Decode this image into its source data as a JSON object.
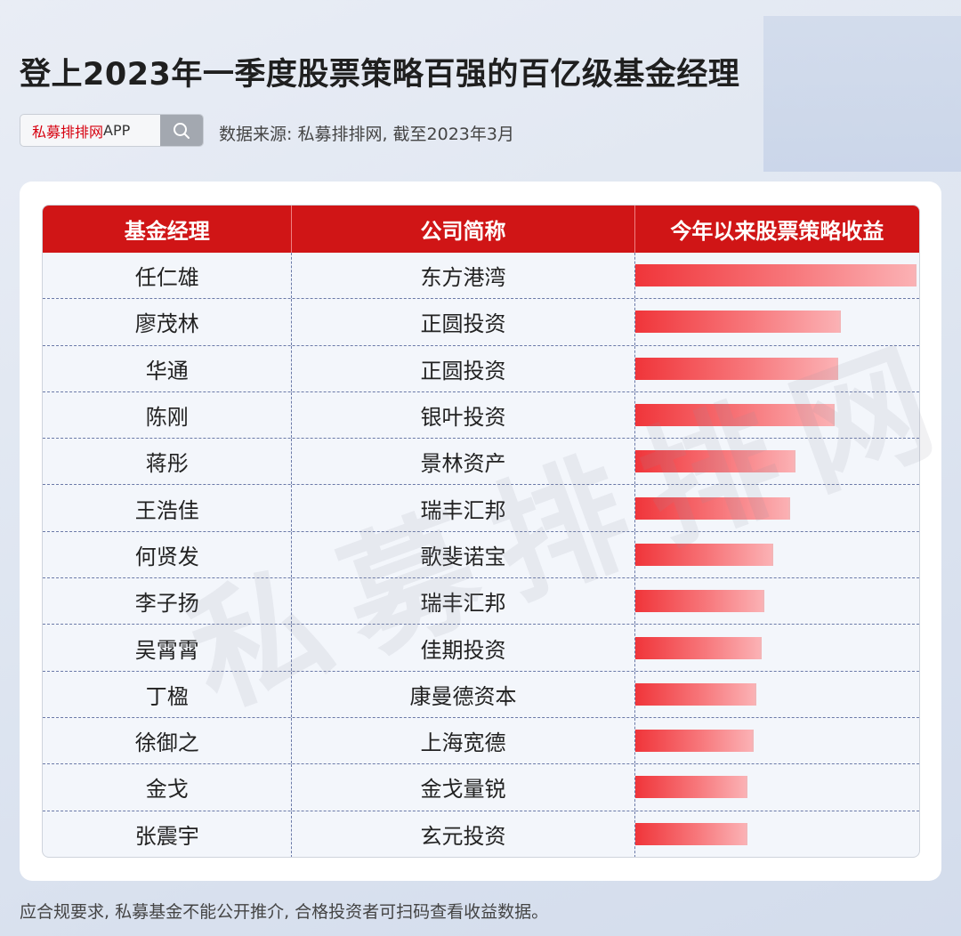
{
  "title": "登上2023年一季度股票策略百强的百亿级基金经理",
  "search": {
    "brand": "私募排排网",
    "suffix": "APP"
  },
  "source": "数据来源: 私募排排网, 截至2023年3月",
  "watermark": "私募排排网",
  "footer": "应合规要求, 私募基金不能公开推介, 合格投资者可扫码查看收益数据。",
  "colors": {
    "header": "#d01516",
    "bar_start": "#f0353a",
    "bar_end": "#fbb1b4"
  },
  "chart_data": {
    "type": "table",
    "columns": [
      "基金经理",
      "公司简称",
      "今年以来股票策略收益"
    ],
    "rows": [
      {
        "manager": "任仁雄",
        "company": "东方港湾",
        "relative_return": 1.0
      },
      {
        "manager": "廖茂林",
        "company": "正圆投资",
        "relative_return": 0.73
      },
      {
        "manager": "华通",
        "company": "正圆投资",
        "relative_return": 0.72
      },
      {
        "manager": "陈刚",
        "company": "银叶投资",
        "relative_return": 0.71
      },
      {
        "manager": "蒋彤",
        "company": "景林资产",
        "relative_return": 0.57
      },
      {
        "manager": "王浩佳",
        "company": "瑞丰汇邦",
        "relative_return": 0.55
      },
      {
        "manager": "何贤发",
        "company": "歌斐诺宝",
        "relative_return": 0.49
      },
      {
        "manager": "李子扬",
        "company": "瑞丰汇邦",
        "relative_return": 0.46
      },
      {
        "manager": "吴霄霄",
        "company": "佳期投资",
        "relative_return": 0.45
      },
      {
        "manager": "丁楹",
        "company": "康曼德资本",
        "relative_return": 0.43
      },
      {
        "manager": "徐御之",
        "company": "上海宽德",
        "relative_return": 0.42
      },
      {
        "manager": "金戈",
        "company": "金戈量锐",
        "relative_return": 0.4
      },
      {
        "manager": "张震宇",
        "company": "玄元投资",
        "relative_return": 0.4
      }
    ]
  }
}
